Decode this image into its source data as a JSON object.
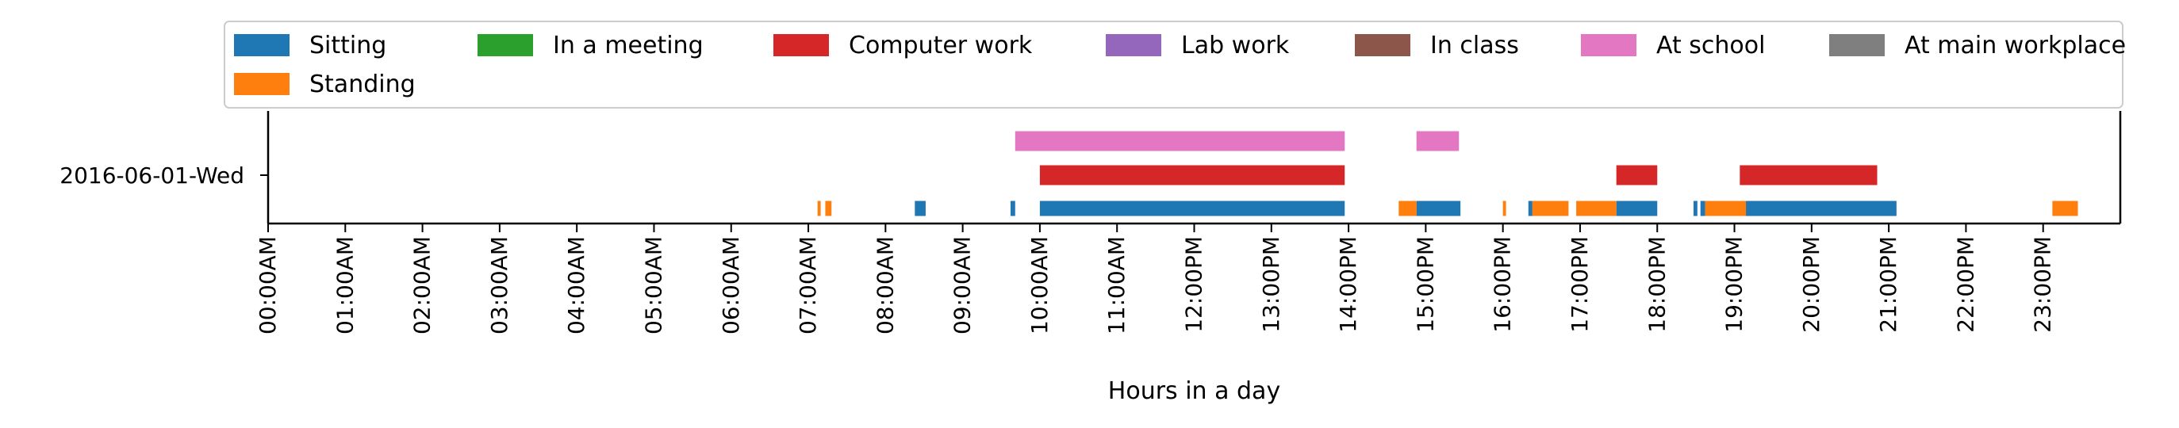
{
  "chart_data": {
    "type": "timeline",
    "title": "",
    "xlabel": "Hours in a day",
    "ylabel": "",
    "xlim": [
      0,
      24
    ],
    "row_label": "2016-06-01-Wed",
    "x_tick_labels": [
      "00:00AM",
      "01:00AM",
      "02:00AM",
      "03:00AM",
      "04:00AM",
      "05:00AM",
      "06:00AM",
      "07:00AM",
      "08:00AM",
      "09:00AM",
      "10:00AM",
      "11:00AM",
      "12:00PM",
      "13:00PM",
      "14:00PM",
      "15:00PM",
      "16:00PM",
      "17:00PM",
      "18:00PM",
      "19:00PM",
      "20:00PM",
      "21:00PM",
      "22:00PM",
      "23:00PM"
    ],
    "legend_position": "top",
    "grid": false,
    "series": [
      {
        "name": "Sitting",
        "color": "#1f77b4",
        "lane": 0,
        "intervals": [
          [
            8.38,
            8.52
          ],
          [
            9.62,
            9.68
          ],
          [
            10.0,
            13.95
          ],
          [
            14.88,
            15.45
          ],
          [
            16.33,
            16.39
          ],
          [
            17.47,
            18.0
          ],
          [
            18.47,
            18.52
          ],
          [
            18.56,
            18.62
          ],
          [
            19.07,
            21.1
          ]
        ]
      },
      {
        "name": "In a meeting",
        "color": "#2ca02c",
        "lane": 0,
        "intervals": []
      },
      {
        "name": "Computer work",
        "color": "#d62728",
        "lane": 1,
        "intervals": [
          [
            10.0,
            13.95
          ],
          [
            17.47,
            18.0
          ],
          [
            19.07,
            20.85
          ]
        ]
      },
      {
        "name": "Lab work",
        "color": "#9467bd",
        "lane": 1,
        "intervals": []
      },
      {
        "name": "In class",
        "color": "#8c564b",
        "lane": 2,
        "intervals": []
      },
      {
        "name": "At school",
        "color": "#e377c2",
        "lane": 2,
        "intervals": [
          [
            9.68,
            13.95
          ],
          [
            14.88,
            15.43
          ]
        ]
      },
      {
        "name": "At main workplace",
        "color": "#7f7f7f",
        "lane": 2,
        "intervals": []
      },
      {
        "name": "Standing",
        "color": "#ff7f0e",
        "lane": 0,
        "intervals": [
          [
            7.12,
            7.16
          ],
          [
            7.22,
            7.3
          ],
          [
            14.65,
            14.88
          ],
          [
            16.0,
            16.04
          ],
          [
            16.38,
            16.85
          ],
          [
            16.95,
            17.47
          ],
          [
            18.62,
            19.15
          ],
          [
            23.12,
            23.45
          ]
        ]
      }
    ]
  }
}
